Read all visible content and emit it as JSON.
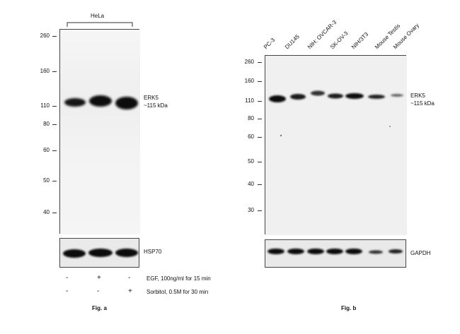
{
  "figure_a": {
    "caption": "Fig. a",
    "group_label": "HeLa",
    "mw_markers": [
      "260",
      "160",
      "110",
      "80",
      "60",
      "50",
      "40"
    ],
    "band_label_line1": "ERK5",
    "band_label_line2": "~115 kDa",
    "loading_control": "HSP70",
    "treatments": [
      {
        "label": "EGF, 100ng/ml for 15 min",
        "signs": [
          "-",
          "+",
          "-"
        ]
      },
      {
        "label": "Sorbitol, 0.5M for 30 min",
        "signs": [
          "-",
          "-",
          "+"
        ]
      }
    ]
  },
  "figure_b": {
    "caption": "Fig. b",
    "lanes": [
      "PC-3",
      "DU145",
      "NIH: OVCAR-3",
      "SK-OV-3",
      "NIH/3T3",
      "Mouse Testis",
      "Mouse Ovary"
    ],
    "mw_markers": [
      "260",
      "160",
      "110",
      "80",
      "60",
      "50",
      "40",
      "30"
    ],
    "band_label_line1": "ERK5",
    "band_label_line2": "~115 kDa",
    "loading_control": "GAPDH"
  }
}
